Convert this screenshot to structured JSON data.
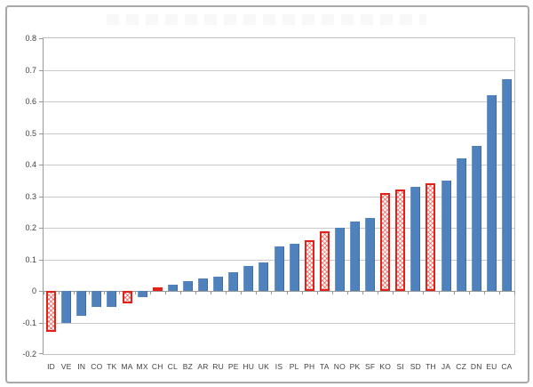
{
  "figure": {
    "background": "#ffffff",
    "outer_border_color": "#a8a8a8"
  },
  "chart_data": {
    "type": "bar",
    "title": "",
    "xlabel": "",
    "ylabel": "",
    "categories": [
      "ID",
      "VE",
      "IN",
      "CO",
      "TK",
      "MA",
      "MX",
      "CH",
      "CL",
      "BZ",
      "AR",
      "RU",
      "PE",
      "HU",
      "UK",
      "IS",
      "PL",
      "PH",
      "TA",
      "NO",
      "PK",
      "SF",
      "KO",
      "SI",
      "SD",
      "TH",
      "JA",
      "CZ",
      "DN",
      "EU",
      "CA"
    ],
    "values": [
      -0.13,
      -0.1,
      -0.08,
      -0.05,
      -0.05,
      -0.04,
      -0.02,
      0.01,
      0.02,
      0.03,
      0.04,
      0.045,
      0.06,
      0.08,
      0.09,
      0.14,
      0.15,
      0.16,
      0.19,
      0.2,
      0.22,
      0.23,
      0.31,
      0.32,
      0.33,
      0.34,
      0.35,
      0.42,
      0.46,
      0.62,
      0.67
    ],
    "highlighted_categories": [
      "ID",
      "MA",
      "CH",
      "PH",
      "TA",
      "KO",
      "SI",
      "TH"
    ],
    "ylim": [
      -0.2,
      0.8
    ],
    "ytick_step": 0.1,
    "ytick_labels": [
      "0.8",
      "0.7",
      "0.6",
      "0.5",
      "0.4",
      "0.3",
      "0.2",
      "0.1",
      "0",
      "-0.1",
      "-0.2"
    ],
    "grid": true,
    "legend": "none",
    "colors": {
      "bar_fill": "#4f81bd",
      "highlight_border": "#e32119",
      "gridline": "#c9c9c9",
      "axis_line": "#9a9a9a",
      "tick_label": "#3f3f3f"
    }
  }
}
